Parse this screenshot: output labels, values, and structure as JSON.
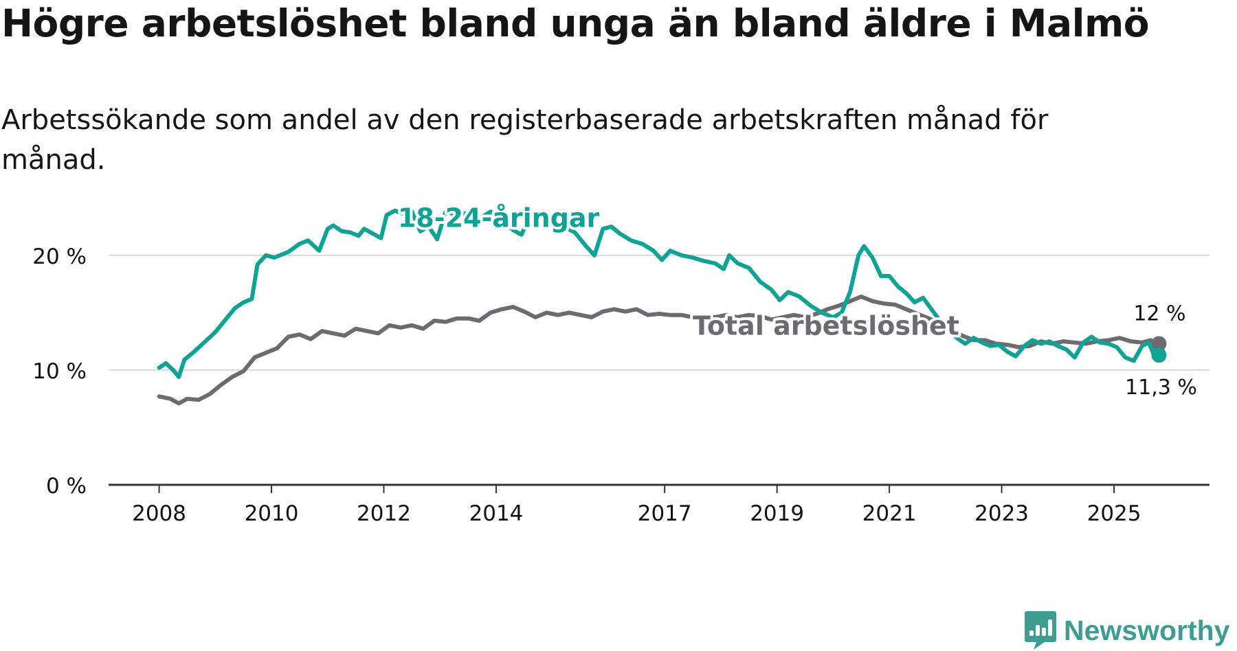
{
  "title": "Högre arbetslöshet bland unga än bland äldre i Malmö",
  "subtitle": "Arbetssökande som andel av den registerbaserade arbetskraften månad för månad.",
  "brand": "Newsworthy",
  "brand_icon": "newsworthy-logo-icon",
  "colors": {
    "youth": "#0fa395",
    "total": "#6d6b70",
    "grid": "#d9d9d9",
    "axis": "#333333",
    "text": "#111111"
  },
  "chart_data": {
    "type": "line",
    "x_unit": "year (decimal)",
    "xlim": [
      2007.1,
      2026.7
    ],
    "ylim": [
      0,
      22.5
    ],
    "yticks": [
      {
        "value": 0,
        "label": "0 %"
      },
      {
        "value": 10,
        "label": "10 %"
      },
      {
        "value": 20,
        "label": "20 %"
      }
    ],
    "xticks": [
      {
        "value": 2008,
        "label": "2008"
      },
      {
        "value": 2010,
        "label": "2010"
      },
      {
        "value": 2012,
        "label": "2012"
      },
      {
        "value": 2014,
        "label": "2014"
      },
      {
        "value": 2017,
        "label": "2017"
      },
      {
        "value": 2019,
        "label": "2019"
      },
      {
        "value": 2021,
        "label": "2021"
      },
      {
        "value": 2023,
        "label": "2023"
      },
      {
        "value": 2025,
        "label": "2025"
      }
    ],
    "series": [
      {
        "name": "Total arbetslöshet",
        "color_key": "total",
        "end_label": "12 %",
        "points": [
          [
            2008.0,
            7.7
          ],
          [
            2008.2,
            7.5
          ],
          [
            2008.35,
            7.1
          ],
          [
            2008.5,
            7.5
          ],
          [
            2008.7,
            7.4
          ],
          [
            2008.9,
            7.9
          ],
          [
            2009.1,
            8.7
          ],
          [
            2009.3,
            9.4
          ],
          [
            2009.5,
            9.9
          ],
          [
            2009.7,
            11.1
          ],
          [
            2009.9,
            11.5
          ],
          [
            2010.1,
            11.9
          ],
          [
            2010.3,
            12.9
          ],
          [
            2010.5,
            13.1
          ],
          [
            2010.7,
            12.7
          ],
          [
            2010.9,
            13.4
          ],
          [
            2011.1,
            13.2
          ],
          [
            2011.3,
            13.0
          ],
          [
            2011.5,
            13.6
          ],
          [
            2011.7,
            13.4
          ],
          [
            2011.9,
            13.2
          ],
          [
            2012.1,
            13.9
          ],
          [
            2012.3,
            13.7
          ],
          [
            2012.5,
            13.9
          ],
          [
            2012.7,
            13.6
          ],
          [
            2012.9,
            14.3
          ],
          [
            2013.1,
            14.2
          ],
          [
            2013.3,
            14.5
          ],
          [
            2013.5,
            14.5
          ],
          [
            2013.7,
            14.3
          ],
          [
            2013.9,
            15.0
          ],
          [
            2014.1,
            15.3
          ],
          [
            2014.3,
            15.5
          ],
          [
            2014.5,
            15.1
          ],
          [
            2014.7,
            14.6
          ],
          [
            2014.9,
            15.0
          ],
          [
            2015.1,
            14.8
          ],
          [
            2015.3,
            15.0
          ],
          [
            2015.5,
            14.8
          ],
          [
            2015.7,
            14.6
          ],
          [
            2015.9,
            15.1
          ],
          [
            2016.1,
            15.3
          ],
          [
            2016.3,
            15.1
          ],
          [
            2016.5,
            15.3
          ],
          [
            2016.7,
            14.8
          ],
          [
            2016.9,
            14.9
          ],
          [
            2017.1,
            14.8
          ],
          [
            2017.3,
            14.8
          ],
          [
            2017.5,
            14.6
          ],
          [
            2017.7,
            14.8
          ],
          [
            2017.9,
            14.6
          ],
          [
            2018.1,
            14.8
          ],
          [
            2018.3,
            14.6
          ],
          [
            2018.5,
            14.8
          ],
          [
            2018.7,
            14.7
          ],
          [
            2018.9,
            14.4
          ],
          [
            2019.1,
            14.6
          ],
          [
            2019.3,
            14.8
          ],
          [
            2019.5,
            14.6
          ],
          [
            2019.7,
            14.9
          ],
          [
            2019.9,
            15.3
          ],
          [
            2020.1,
            15.6
          ],
          [
            2020.3,
            16.0
          ],
          [
            2020.5,
            16.4
          ],
          [
            2020.7,
            16.0
          ],
          [
            2020.9,
            15.8
          ],
          [
            2021.1,
            15.7
          ],
          [
            2021.3,
            15.3
          ],
          [
            2021.5,
            14.9
          ],
          [
            2021.7,
            14.5
          ],
          [
            2021.9,
            14.1
          ],
          [
            2022.1,
            13.5
          ],
          [
            2022.3,
            13.0
          ],
          [
            2022.5,
            12.6
          ],
          [
            2022.7,
            12.6
          ],
          [
            2022.9,
            12.3
          ],
          [
            2023.1,
            12.2
          ],
          [
            2023.3,
            12.0
          ],
          [
            2023.5,
            12.1
          ],
          [
            2023.7,
            12.5
          ],
          [
            2023.9,
            12.3
          ],
          [
            2024.1,
            12.5
          ],
          [
            2024.3,
            12.4
          ],
          [
            2024.5,
            12.3
          ],
          [
            2024.7,
            12.5
          ],
          [
            2024.9,
            12.6
          ],
          [
            2025.1,
            12.8
          ],
          [
            2025.3,
            12.5
          ],
          [
            2025.5,
            12.4
          ],
          [
            2025.65,
            12.6
          ],
          [
            2025.8,
            12.3
          ]
        ]
      },
      {
        "name": "18-24-åringar",
        "color_key": "youth",
        "end_label": "11,3 %",
        "points": [
          [
            2008.0,
            10.2
          ],
          [
            2008.12,
            10.6
          ],
          [
            2008.25,
            10.0
          ],
          [
            2008.35,
            9.4
          ],
          [
            2008.45,
            10.9
          ],
          [
            2008.6,
            11.5
          ],
          [
            2008.8,
            12.4
          ],
          [
            2009.0,
            13.3
          ],
          [
            2009.2,
            14.5
          ],
          [
            2009.35,
            15.4
          ],
          [
            2009.5,
            15.9
          ],
          [
            2009.65,
            16.2
          ],
          [
            2009.75,
            19.2
          ],
          [
            2009.9,
            20.0
          ],
          [
            2010.05,
            19.8
          ],
          [
            2010.3,
            20.3
          ],
          [
            2010.5,
            21.0
          ],
          [
            2010.65,
            21.3
          ],
          [
            2010.85,
            20.4
          ],
          [
            2011.0,
            22.3
          ],
          [
            2011.1,
            22.6
          ],
          [
            2011.25,
            22.1
          ],
          [
            2011.4,
            22.0
          ],
          [
            2011.55,
            21.7
          ],
          [
            2011.65,
            22.3
          ],
          [
            2011.8,
            21.9
          ],
          [
            2011.95,
            21.5
          ],
          [
            2012.05,
            23.5
          ],
          [
            2012.2,
            23.9
          ],
          [
            2012.35,
            23.6
          ],
          [
            2012.5,
            23.8
          ],
          [
            2012.65,
            22.1
          ],
          [
            2012.8,
            22.5
          ],
          [
            2012.95,
            21.4
          ],
          [
            2013.1,
            23.8
          ],
          [
            2013.3,
            23.5
          ],
          [
            2013.5,
            23.7
          ],
          [
            2013.7,
            23.2
          ],
          [
            2013.9,
            23.8
          ],
          [
            2014.05,
            23.4
          ],
          [
            2014.3,
            22.2
          ],
          [
            2014.45,
            21.8
          ],
          [
            2014.6,
            23.4
          ],
          [
            2014.8,
            23.4
          ],
          [
            2015.0,
            23.2
          ],
          [
            2015.2,
            22.5
          ],
          [
            2015.4,
            22.0
          ],
          [
            2015.6,
            20.8
          ],
          [
            2015.75,
            20.0
          ],
          [
            2015.9,
            22.3
          ],
          [
            2016.05,
            22.5
          ],
          [
            2016.2,
            21.9
          ],
          [
            2016.4,
            21.3
          ],
          [
            2016.6,
            21.0
          ],
          [
            2016.8,
            20.4
          ],
          [
            2016.95,
            19.6
          ],
          [
            2017.1,
            20.4
          ],
          [
            2017.3,
            20.0
          ],
          [
            2017.5,
            19.8
          ],
          [
            2017.7,
            19.5
          ],
          [
            2017.9,
            19.3
          ],
          [
            2018.05,
            18.8
          ],
          [
            2018.15,
            20.0
          ],
          [
            2018.3,
            19.3
          ],
          [
            2018.5,
            18.9
          ],
          [
            2018.7,
            17.7
          ],
          [
            2018.9,
            17.0
          ],
          [
            2019.05,
            16.1
          ],
          [
            2019.2,
            16.8
          ],
          [
            2019.4,
            16.4
          ],
          [
            2019.6,
            15.6
          ],
          [
            2019.8,
            15.0
          ],
          [
            2020.0,
            14.6
          ],
          [
            2020.15,
            15.0
          ],
          [
            2020.3,
            16.8
          ],
          [
            2020.45,
            20.0
          ],
          [
            2020.55,
            20.8
          ],
          [
            2020.7,
            19.8
          ],
          [
            2020.85,
            18.2
          ],
          [
            2021.0,
            18.2
          ],
          [
            2021.15,
            17.3
          ],
          [
            2021.3,
            16.7
          ],
          [
            2021.45,
            15.9
          ],
          [
            2021.6,
            16.3
          ],
          [
            2021.75,
            15.3
          ],
          [
            2021.9,
            14.3
          ],
          [
            2022.05,
            13.5
          ],
          [
            2022.2,
            12.8
          ],
          [
            2022.35,
            12.3
          ],
          [
            2022.5,
            12.8
          ],
          [
            2022.65,
            12.4
          ],
          [
            2022.8,
            12.1
          ],
          [
            2022.95,
            12.2
          ],
          [
            2023.1,
            11.6
          ],
          [
            2023.25,
            11.2
          ],
          [
            2023.4,
            12.1
          ],
          [
            2023.55,
            12.6
          ],
          [
            2023.7,
            12.3
          ],
          [
            2023.85,
            12.5
          ],
          [
            2024.0,
            12.1
          ],
          [
            2024.15,
            11.8
          ],
          [
            2024.3,
            11.1
          ],
          [
            2024.45,
            12.4
          ],
          [
            2024.6,
            12.9
          ],
          [
            2024.75,
            12.4
          ],
          [
            2024.9,
            12.3
          ],
          [
            2025.05,
            12.0
          ],
          [
            2025.2,
            11.1
          ],
          [
            2025.35,
            10.8
          ],
          [
            2025.5,
            12.1
          ],
          [
            2025.62,
            12.4
          ],
          [
            2025.72,
            11.2
          ],
          [
            2025.8,
            11.3
          ]
        ]
      }
    ],
    "annotations": [
      {
        "text": "18-24-åringar",
        "series": "18-24-åringar"
      },
      {
        "text": "Total arbetslöshet",
        "series": "Total arbetslöshet"
      }
    ]
  }
}
